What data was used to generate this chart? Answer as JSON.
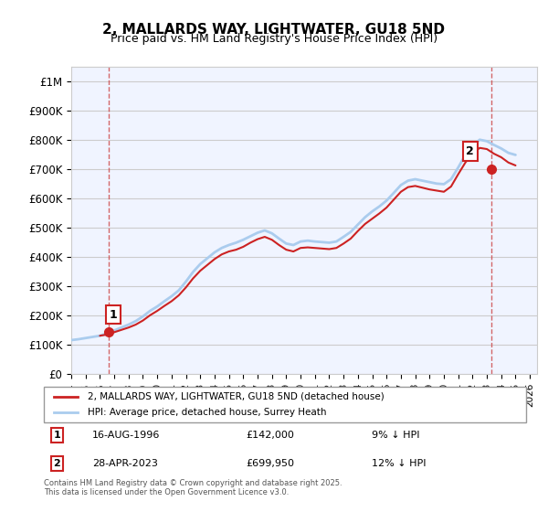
{
  "title": "2, MALLARDS WAY, LIGHTWATER, GU18 5ND",
  "subtitle": "Price paid vs. HM Land Registry's House Price Index (HPI)",
  "hpi_label": "HPI: Average price, detached house, Surrey Heath",
  "property_label": "2, MALLARDS WAY, LIGHTWATER, GU18 5ND (detached house)",
  "footnote": "Contains HM Land Registry data © Crown copyright and database right 2025.\nThis data is licensed under the Open Government Licence v3.0.",
  "sale1_label": "1",
  "sale1_date": "16-AUG-1996",
  "sale1_price": "£142,000",
  "sale1_hpi": "9% ↓ HPI",
  "sale2_label": "2",
  "sale2_date": "28-APR-2023",
  "sale2_price": "£699,950",
  "sale2_hpi": "12% ↓ HPI",
  "xmin": 1994.0,
  "xmax": 2026.5,
  "ymin": 0,
  "ymax": 1050000,
  "yticks": [
    0,
    100000,
    200000,
    300000,
    400000,
    500000,
    600000,
    700000,
    800000,
    900000,
    1000000
  ],
  "ytick_labels": [
    "£0",
    "£100K",
    "£200K",
    "£300K",
    "£400K",
    "£500K",
    "£600K",
    "£700K",
    "£800K",
    "£900K",
    "£1M"
  ],
  "hpi_color": "#aaccee",
  "property_color": "#cc2222",
  "background_color": "#f0f4ff",
  "grid_color": "#cc4444",
  "sale_marker_color": "#cc2222",
  "hpi_x": [
    1994,
    1994.5,
    1995,
    1995.5,
    1996,
    1996.5,
    1997,
    1997.5,
    1998,
    1998.5,
    1999,
    1999.5,
    2000,
    2000.5,
    2001,
    2001.5,
    2002,
    2002.5,
    2003,
    2003.5,
    2004,
    2004.5,
    2005,
    2005.5,
    2006,
    2006.5,
    2007,
    2007.5,
    2008,
    2008.5,
    2009,
    2009.5,
    2010,
    2010.5,
    2011,
    2011.5,
    2012,
    2012.5,
    2013,
    2013.5,
    2014,
    2014.5,
    2015,
    2015.5,
    2016,
    2016.5,
    2017,
    2017.5,
    2018,
    2018.5,
    2019,
    2019.5,
    2020,
    2020.5,
    2021,
    2021.5,
    2022,
    2022.5,
    2023,
    2023.5,
    2024,
    2024.5,
    2025
  ],
  "hpi_y": [
    115000,
    118000,
    122000,
    126000,
    130000,
    138000,
    148000,
    158000,
    168000,
    180000,
    196000,
    215000,
    230000,
    248000,
    265000,
    285000,
    315000,
    348000,
    375000,
    395000,
    415000,
    430000,
    440000,
    448000,
    458000,
    470000,
    482000,
    490000,
    480000,
    462000,
    445000,
    440000,
    452000,
    455000,
    452000,
    450000,
    448000,
    452000,
    468000,
    485000,
    510000,
    535000,
    555000,
    572000,
    592000,
    618000,
    645000,
    660000,
    665000,
    660000,
    655000,
    650000,
    648000,
    665000,
    705000,
    748000,
    780000,
    800000,
    795000,
    782000,
    770000,
    755000,
    748000
  ],
  "prop_x": [
    1996.0,
    1996.5,
    1997.0,
    1997.5,
    1998.0,
    1998.5,
    1999.0,
    1999.5,
    2000.0,
    2000.5,
    2001.0,
    2001.5,
    2002.0,
    2002.5,
    2003.0,
    2003.5,
    2004.0,
    2004.5,
    2005.0,
    2005.5,
    2006.0,
    2006.5,
    2007.0,
    2007.5,
    2008.0,
    2008.5,
    2009.0,
    2009.5,
    2010.0,
    2010.5,
    2011.0,
    2011.5,
    2012.0,
    2012.5,
    2013.0,
    2013.5,
    2014.0,
    2014.5,
    2015.0,
    2015.5,
    2016.0,
    2016.5,
    2017.0,
    2017.5,
    2018.0,
    2018.5,
    2019.0,
    2019.5,
    2020.0,
    2020.5,
    2021.0,
    2021.5,
    2022.0,
    2022.5,
    2023.0,
    2023.5,
    2024.0,
    2024.5,
    2025.0
  ],
  "prop_y": [
    130000,
    134000,
    142000,
    150000,
    158000,
    168000,
    182000,
    200000,
    215000,
    232000,
    248000,
    268000,
    295000,
    326000,
    352000,
    372000,
    392000,
    408000,
    418000,
    424000,
    434000,
    448000,
    460000,
    468000,
    458000,
    440000,
    424000,
    418000,
    430000,
    432000,
    430000,
    428000,
    426000,
    430000,
    445000,
    462000,
    488000,
    512000,
    530000,
    548000,
    568000,
    595000,
    622000,
    638000,
    642000,
    636000,
    630000,
    626000,
    622000,
    640000,
    682000,
    722000,
    752000,
    772000,
    768000,
    752000,
    740000,
    722000,
    712000
  ],
  "sale1_x": 1996.63,
  "sale1_y": 142000,
  "sale2_x": 2023.33,
  "sale2_y": 699950
}
